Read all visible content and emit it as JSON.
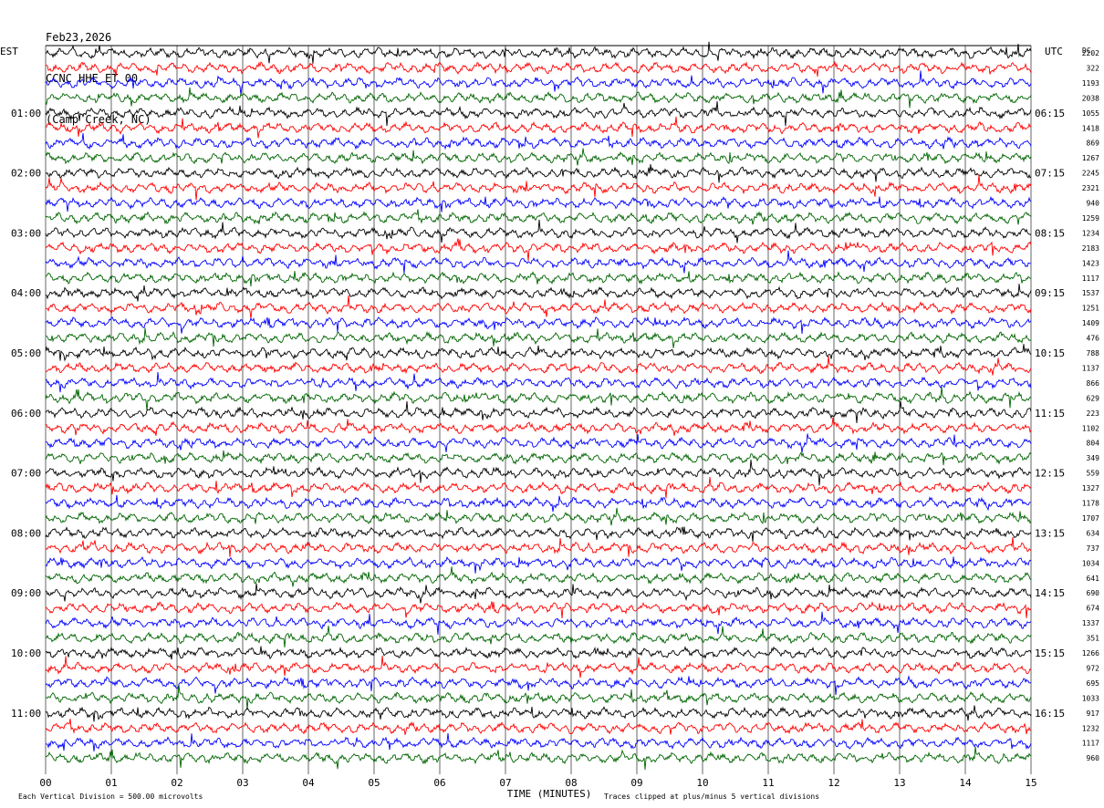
{
  "header": {
    "date": "Feb23,2026",
    "station": "CCNC HHE ET 00",
    "location": "(Camp Creek, NC)"
  },
  "axes": {
    "left_label": "EST",
    "right_label": "UTC",
    "dc_label": "DC",
    "xlabel": "TIME (MINUTES)",
    "x_ticks": [
      "00",
      "01",
      "02",
      "03",
      "04",
      "05",
      "06",
      "07",
      "08",
      "09",
      "10",
      "11",
      "12",
      "13",
      "14",
      "15"
    ]
  },
  "footer": {
    "scale_note": "Each Vertical Division =  500.00 microvolts",
    "clip_note": "Traces clipped at plus/minus 5 vertical divisions"
  },
  "colors": {
    "trace_cycle": [
      "#000000",
      "#ff0000",
      "#0000ff",
      "#006400"
    ],
    "grid": "#000000",
    "background": "#ffffff"
  },
  "chart_data": {
    "type": "line",
    "title": "CCNC HHE ET 00 (Camp Creek, NC)",
    "xlabel": "TIME (MINUTES)",
    "xlim": [
      0,
      15
    ],
    "grid": "vertical lines at each minute",
    "trace_interval_minutes": 15,
    "left_hour_labels": [
      "01:00",
      "02:00",
      "03:00",
      "04:00",
      "05:00",
      "06:00",
      "07:00",
      "08:00",
      "09:00",
      "10:00",
      "11:00"
    ],
    "right_hour_labels": [
      "06:15",
      "07:15",
      "08:15",
      "09:15",
      "10:15",
      "11:15",
      "12:15",
      "13:15",
      "14:15",
      "15:15",
      "16:15"
    ],
    "dc_offsets": [
      2202,
      322,
      1193,
      2038,
      1055,
      1418,
      869,
      1267,
      2245,
      2321,
      940,
      1259,
      1234,
      2183,
      1423,
      1117,
      1537,
      1251,
      1409,
      476,
      788,
      1137,
      866,
      629,
      223,
      1102,
      804,
      349,
      559,
      1327,
      1178,
      1707,
      634,
      737,
      1034,
      641,
      690,
      674,
      1337,
      351,
      1266,
      972,
      695,
      1033,
      917,
      1232,
      1117,
      960
    ]
  }
}
